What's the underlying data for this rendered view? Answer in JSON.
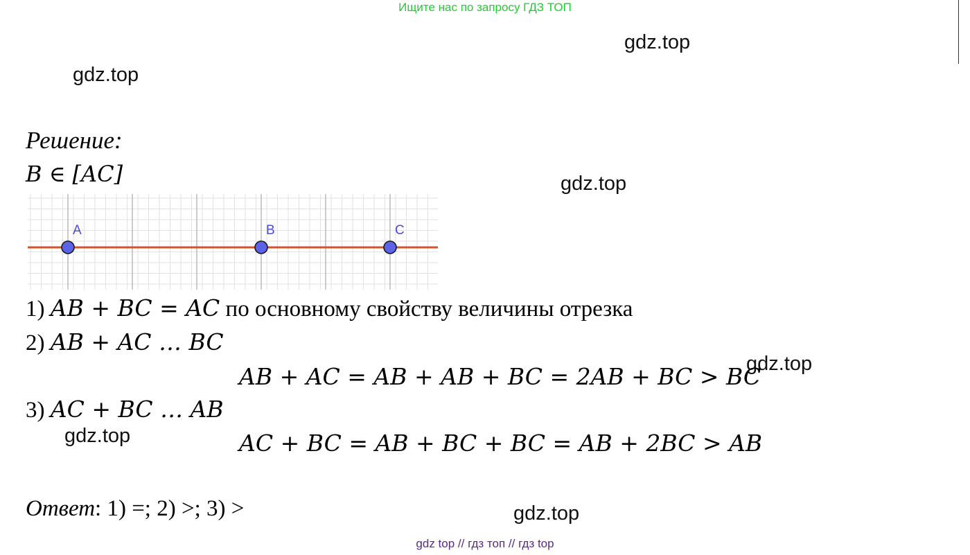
{
  "header": {
    "banner": "Ищите нас по запросу ГДЗ ТОП"
  },
  "watermarks": [
    "gdz.top",
    "gdz.top",
    "gdz.top",
    "gdz.top",
    "gdz.top",
    "gdz.top"
  ],
  "solution": {
    "heading": "Решение:",
    "given": "B ∈ [AC]",
    "figure": {
      "points": [
        {
          "label": "A"
        },
        {
          "label": "B"
        },
        {
          "label": "C"
        }
      ],
      "colors": {
        "line": "#d4532a",
        "point": "#5b63e8",
        "point_outline": "#1a1a1a",
        "grid_minor": "#e2e2e2",
        "grid_major": "#bbbbbb",
        "label": "#4a4ae0"
      }
    },
    "step1": {
      "num": "1)",
      "expr": "AB + BC =  AC",
      "text": "по основному свойству величины отрезка"
    },
    "step2": {
      "num": "2)",
      "expr": "AB + AC … BC",
      "derivation": "AB + AC = AB + AB + BC = 2AB + BC > BC"
    },
    "step3": {
      "num": "3)",
      "expr": "AC + BC … AB",
      "derivation": "AC + BC = AB + BC + BC = AB + 2BC > AB"
    },
    "answer": {
      "label": "Ответ",
      "text": ": 1) =; 2) >; 3) >"
    }
  },
  "footer": {
    "text": "gdz top  //  гдз топ  //  гдз top"
  }
}
